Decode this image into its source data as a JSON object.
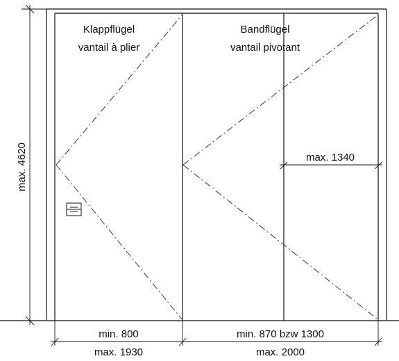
{
  "labels": {
    "klapp_de": "Klappflügel",
    "klapp_fr": "vantail à plier",
    "band_de": "Bandflügel",
    "band_fr": "vantail pivotant",
    "height_max": "max. 4620",
    "pivot_width_max": "max. 1340",
    "left_min": "min. 800",
    "left_max": "max. 1930",
    "right_min": "min. 870 bzw 1300",
    "right_max": "max. 2000"
  }
}
